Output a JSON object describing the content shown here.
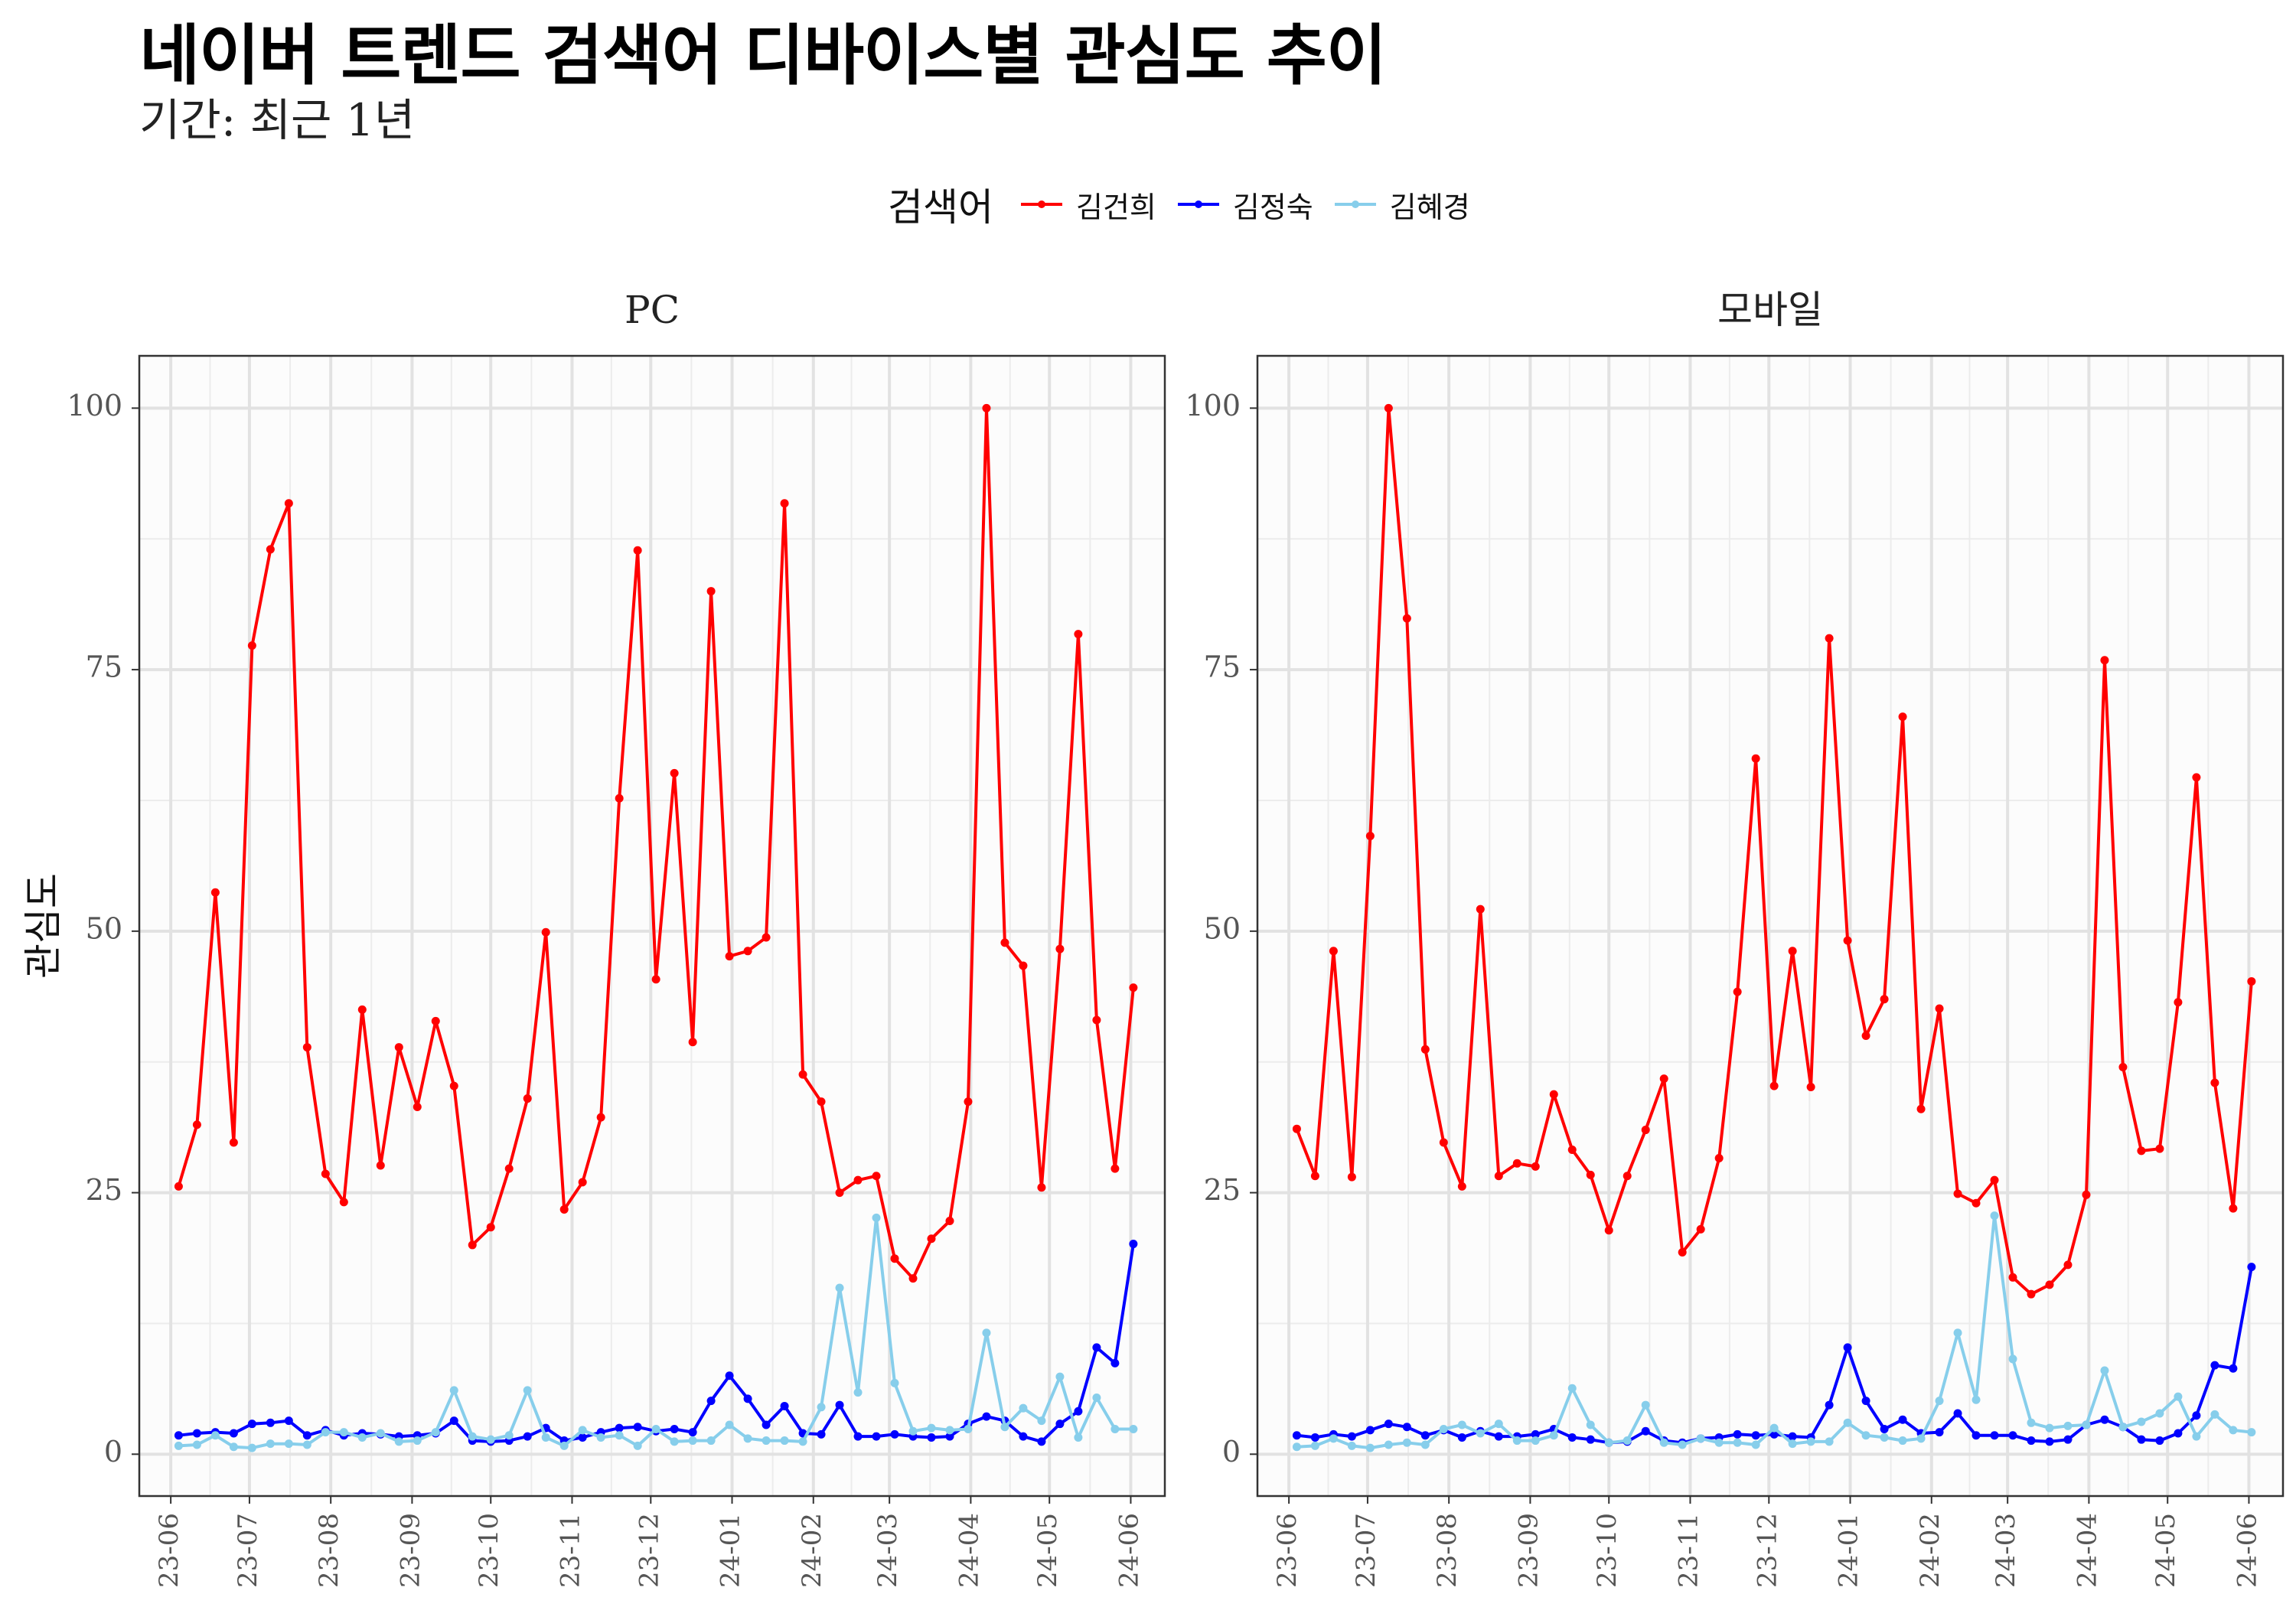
{
  "title": "네이버 트렌드 검색어 디바이스별 관심도 추이",
  "subtitle": "기간: 최근 1년",
  "colors": {
    "김건희": "#ff0000",
    "김정숙": "#0000ff",
    "김혜경": "#87ceeb"
  },
  "chart_data": {
    "type": "line",
    "legend_title": "검색어",
    "legend_position": "top",
    "ylabel": "관심도",
    "xlabel": "",
    "ylim": [
      -4,
      105
    ],
    "yticks": [
      0,
      25,
      50,
      75,
      100
    ],
    "ytick_labels": [
      "0",
      "25",
      "50",
      "75",
      "100"
    ],
    "x_range": [
      "2023-05-20",
      "2024-06-14"
    ],
    "xticks": [
      "2023-06-01",
      "2023-07-01",
      "2023-08-01",
      "2023-09-01",
      "2023-10-01",
      "2023-11-01",
      "2023-12-01",
      "2024-01-01",
      "2024-02-01",
      "2024-03-01",
      "2024-04-01",
      "2024-05-01",
      "2024-06-01"
    ],
    "xtick_labels": [
      "23-06",
      "23-07",
      "23-08",
      "23-09",
      "23-10",
      "23-11",
      "23-12",
      "24-01",
      "24-02",
      "24-03",
      "24-04",
      "24-05",
      "24-06"
    ],
    "grid": true,
    "x": [
      "2023-06-04",
      "2023-06-11",
      "2023-06-18",
      "2023-06-25",
      "2023-07-02",
      "2023-07-09",
      "2023-07-16",
      "2023-07-23",
      "2023-07-30",
      "2023-08-06",
      "2023-08-13",
      "2023-08-20",
      "2023-08-27",
      "2023-09-03",
      "2023-09-10",
      "2023-09-17",
      "2023-09-24",
      "2023-10-01",
      "2023-10-08",
      "2023-10-15",
      "2023-10-22",
      "2023-10-29",
      "2023-11-05",
      "2023-11-12",
      "2023-11-19",
      "2023-11-26",
      "2023-12-03",
      "2023-12-10",
      "2023-12-17",
      "2023-12-24",
      "2023-12-31",
      "2024-01-07",
      "2024-01-14",
      "2024-01-21",
      "2024-01-28",
      "2024-02-04",
      "2024-02-11",
      "2024-02-18",
      "2024-02-25",
      "2024-03-03",
      "2024-03-10",
      "2024-03-17",
      "2024-03-24",
      "2024-03-31",
      "2024-04-07",
      "2024-04-14",
      "2024-04-21",
      "2024-04-28",
      "2024-05-05",
      "2024-05-12",
      "2024-05-19",
      "2024-05-26",
      "2024-06-02"
    ],
    "panels": [
      {
        "strip": "PC",
        "series": [
          {
            "name": "김건희",
            "values": [
              25.6,
              31.5,
              53.7,
              29.8,
              77.3,
              86.5,
              90.9,
              38.9,
              26.8,
              24.1,
              42.5,
              27.6,
              38.9,
              33.2,
              41.4,
              35.2,
              20.0,
              21.7,
              27.3,
              34.0,
              49.9,
              23.4,
              26.0,
              32.2,
              62.7,
              86.4,
              45.4,
              65.1,
              39.4,
              82.5,
              47.6,
              48.1,
              49.4,
              90.9,
              36.3,
              33.7,
              25.0,
              26.2,
              26.6,
              18.7,
              16.8,
              20.6,
              22.3,
              33.7,
              100,
              48.9,
              46.7,
              25.5,
              48.3,
              78.4,
              41.5,
              27.3,
              44.6
            ]
          },
          {
            "name": "김정숙",
            "values": [
              1.8,
              2.0,
              2.1,
              2.0,
              2.9,
              3.0,
              3.2,
              1.8,
              2.3,
              1.8,
              2.0,
              1.9,
              1.7,
              1.8,
              2.0,
              3.2,
              1.3,
              1.2,
              1.3,
              1.7,
              2.5,
              1.3,
              1.6,
              2.1,
              2.5,
              2.6,
              2.2,
              2.4,
              2.1,
              5.1,
              7.5,
              5.3,
              2.8,
              4.6,
              2.0,
              1.9,
              4.7,
              1.7,
              1.7,
              1.9,
              1.7,
              1.6,
              1.7,
              2.9,
              3.6,
              3.2,
              1.7,
              1.2,
              2.9,
              4.1,
              10.2,
              8.7,
              20.1
            ]
          },
          {
            "name": "김혜경",
            "values": [
              0.8,
              0.9,
              1.8,
              0.7,
              0.6,
              1.0,
              1.0,
              0.9,
              2.1,
              2.1,
              1.6,
              2.0,
              1.2,
              1.3,
              2.1,
              6.1,
              1.7,
              1.4,
              1.8,
              6.1,
              1.6,
              0.8,
              2.3,
              1.6,
              1.8,
              0.8,
              2.4,
              1.2,
              1.3,
              1.3,
              2.8,
              1.5,
              1.3,
              1.3,
              1.2,
              4.5,
              15.9,
              5.9,
              22.6,
              6.8,
              2.2,
              2.5,
              2.3,
              2.4,
              11.6,
              2.6,
              4.4,
              3.2,
              7.4,
              1.6,
              5.4,
              2.4,
              2.4
            ]
          }
        ]
      },
      {
        "strip": "모바일",
        "series": [
          {
            "name": "김건희",
            "values": [
              31.1,
              26.6,
              48.1,
              26.5,
              59.1,
              100,
              79.9,
              38.7,
              29.8,
              25.6,
              52.1,
              26.6,
              27.8,
              27.5,
              34.4,
              29.1,
              26.7,
              21.4,
              26.6,
              31.0,
              35.9,
              19.3,
              21.5,
              28.3,
              44.2,
              66.5,
              35.2,
              48.1,
              35.1,
              78.0,
              49.1,
              40.0,
              43.5,
              70.5,
              33.0,
              42.6,
              24.9,
              24.0,
              26.2,
              16.9,
              15.3,
              16.2,
              18.1,
              24.8,
              75.9,
              37.0,
              29.0,
              29.2,
              43.2,
              64.7,
              35.5,
              23.5,
              45.2
            ]
          },
          {
            "name": "김정숙",
            "values": [
              1.8,
              1.6,
              1.9,
              1.7,
              2.3,
              2.9,
              2.6,
              1.8,
              2.3,
              1.6,
              2.2,
              1.7,
              1.7,
              1.9,
              2.4,
              1.6,
              1.4,
              1.1,
              1.2,
              2.2,
              1.3,
              1.1,
              1.5,
              1.6,
              1.9,
              1.8,
              1.9,
              1.7,
              1.6,
              4.7,
              10.2,
              5.1,
              2.4,
              3.3,
              2.0,
              2.1,
              3.9,
              1.8,
              1.8,
              1.8,
              1.3,
              1.2,
              1.4,
              2.8,
              3.3,
              2.6,
              1.4,
              1.3,
              2.0,
              3.7,
              8.5,
              8.2,
              17.9
            ]
          },
          {
            "name": "김혜경",
            "values": [
              0.7,
              0.8,
              1.5,
              0.8,
              0.6,
              0.9,
              1.1,
              0.9,
              2.4,
              2.8,
              2.0,
              2.9,
              1.3,
              1.3,
              1.8,
              6.3,
              2.8,
              1.1,
              1.3,
              4.7,
              1.1,
              0.9,
              1.5,
              1.1,
              1.1,
              0.9,
              2.5,
              1.0,
              1.2,
              1.2,
              3.0,
              1.8,
              1.6,
              1.3,
              1.5,
              5.1,
              11.6,
              5.2,
              22.8,
              9.1,
              3.0,
              2.5,
              2.7,
              2.8,
              8.0,
              2.6,
              3.1,
              3.9,
              5.5,
              1.7,
              3.8,
              2.3,
              2.1
            ]
          }
        ]
      }
    ]
  }
}
